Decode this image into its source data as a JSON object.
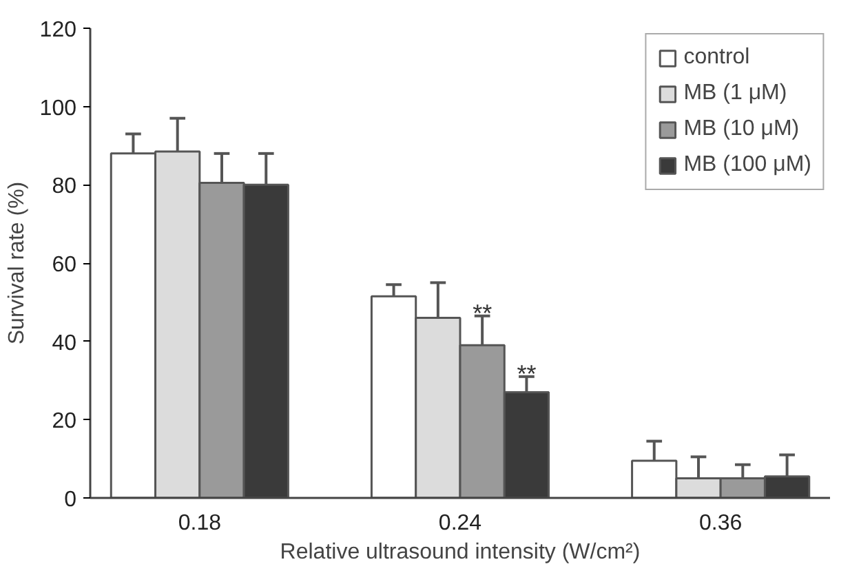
{
  "chart_data": {
    "type": "bar",
    "xlabel": "Relative ultrasound intensity (W/cm²)",
    "ylabel": "Survival rate (%)",
    "categories": [
      "0.18",
      "0.24",
      "0.36"
    ],
    "series": [
      {
        "name": "control",
        "color": "#ffffff",
        "values": [
          88,
          51.5,
          9.5
        ],
        "errors": [
          [
            88,
            93
          ],
          [
            51.5,
            54.5
          ],
          [
            9.5,
            14.5
          ]
        ]
      },
      {
        "name": "MB (1 μM)",
        "color": "#dcdcdc",
        "values": [
          88.5,
          46,
          5
        ],
        "errors": [
          [
            88.5,
            97
          ],
          [
            46,
            55
          ],
          [
            5,
            10.5
          ]
        ]
      },
      {
        "name": "MB (10 μM)",
        "color": "#9a9a9a",
        "values": [
          80.5,
          39,
          5
        ],
        "errors": [
          [
            80.5,
            88
          ],
          [
            39,
            46.5
          ],
          [
            5,
            8.5
          ]
        ]
      },
      {
        "name": "MB (100 μM)",
        "color": "#3a3a3a",
        "values": [
          80,
          27,
          5.5
        ],
        "errors": [
          [
            80,
            88
          ],
          [
            27,
            31
          ],
          [
            5.5,
            11
          ]
        ]
      }
    ],
    "annotations": [
      {
        "text": "**",
        "x": "0.24",
        "y": 46.5
      },
      {
        "text": "**",
        "x": "0.24",
        "y": 31
      }
    ],
    "ylim": [
      0,
      120
    ],
    "yticks": [
      0,
      20,
      40,
      60,
      80,
      100,
      120
    ],
    "grid": false,
    "legend": "top right"
  }
}
